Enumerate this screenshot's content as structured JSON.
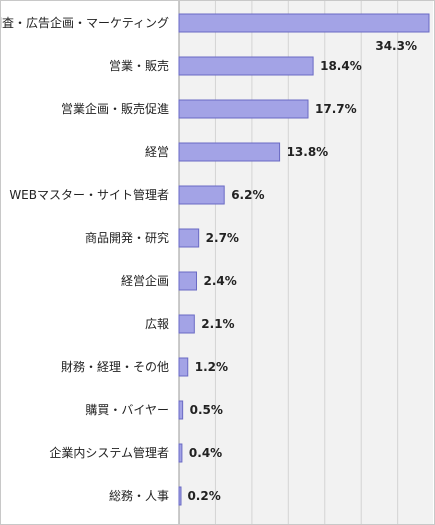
{
  "chart_data": {
    "type": "bar",
    "orientation": "horizontal",
    "categories": [
      "調査・広告企画・マーケティング",
      "営業・販売",
      "営業企画・販売促進",
      "経営",
      "WEBマスター・サイト管理者",
      "商品開発・研究",
      "経営企画",
      "広報",
      "財務・経理・その他",
      "購買・バイヤー",
      "企業内システム管理者",
      "総務・人事"
    ],
    "values": [
      34.3,
      18.4,
      17.7,
      13.8,
      6.2,
      2.7,
      2.4,
      2.1,
      1.2,
      0.5,
      0.4,
      0.2
    ],
    "value_labels": [
      "34.3%",
      "18.4%",
      "17.7%",
      "13.8%",
      "6.2%",
      "2.7%",
      "2.4%",
      "2.1%",
      "1.2%",
      "0.5%",
      "0.4%",
      "0.2%"
    ],
    "title": "",
    "xlabel": "",
    "ylabel": "",
    "xlim": [
      0,
      35
    ],
    "grid": true,
    "legend": "none",
    "colors": {
      "bar_fill": "#a3a3e6",
      "bar_stroke": "#6a6ac4",
      "plot_background": "#f2f2f2",
      "grid_line": "#d4d4d4",
      "axis_line": "#9a9a9a",
      "text": "#222222"
    }
  }
}
